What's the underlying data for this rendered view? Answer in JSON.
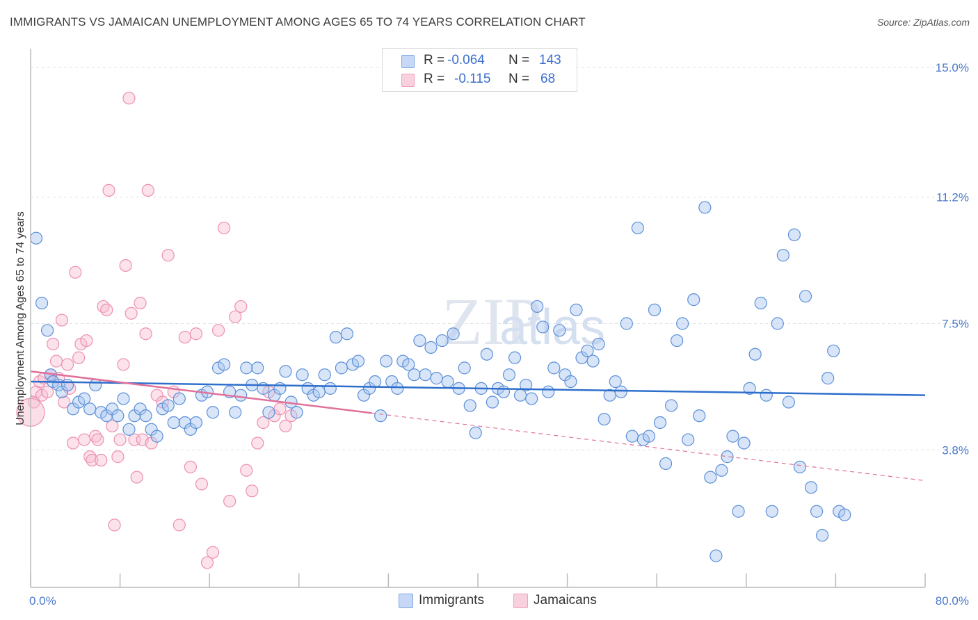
{
  "header": {
    "title": "IMMIGRANTS VS JAMAICAN UNEMPLOYMENT AMONG AGES 65 TO 74 YEARS CORRELATION CHART",
    "source": "Source: ZipAtlas.com"
  },
  "watermark": "ZIPatlas",
  "legend": {
    "rows": [
      {
        "r_label": "R =",
        "r_value": "-0.064",
        "n_label": "N =",
        "n_value": "143",
        "color": "#7ea7e6"
      },
      {
        "r_label": "R =",
        "r_value": "-0.115",
        "n_label": "N =",
        "n_value": "68",
        "color": "#f0a0bf"
      }
    ]
  },
  "bottom_legend": {
    "items": [
      {
        "label": "Immigrants",
        "color": "#7ea7e6"
      },
      {
        "label": "Jamaicans",
        "color": "#f0a0bf"
      }
    ]
  },
  "chart_data": {
    "type": "scatter",
    "ylabel": "Unemployment Among Ages 65 to 74 years",
    "xlim": [
      0,
      80
    ],
    "ylim": [
      0,
      15
    ],
    "x_tick_labels": [
      "0.0%",
      "80.0%"
    ],
    "y_ticks": [
      {
        "value": 3.8,
        "label": "3.8%"
      },
      {
        "value": 7.5,
        "label": "7.5%"
      },
      {
        "value": 11.2,
        "label": "11.2%"
      },
      {
        "value": 15.0,
        "label": "15.0%"
      }
    ],
    "grid": "horizontal dashed",
    "colors": {
      "immigrants": "#5b8fd8",
      "jamaicans": "#ee8fb2",
      "immigrants_line": "#2f6fcc",
      "jamaicans_line": "#e0719a"
    },
    "series": [
      {
        "name": "Immigrants",
        "trend": {
          "x": [
            0,
            80
          ],
          "y": [
            5.8,
            5.4
          ]
        },
        "points": [
          [
            0.5,
            10.0
          ],
          [
            1.0,
            8.1
          ],
          [
            1.5,
            7.3
          ],
          [
            1.8,
            6.0
          ],
          [
            2.0,
            5.8
          ],
          [
            2.5,
            5.7
          ],
          [
            2.8,
            5.5
          ],
          [
            3.3,
            5.7
          ],
          [
            3.8,
            5.0
          ],
          [
            4.3,
            5.2
          ],
          [
            4.8,
            5.3
          ],
          [
            5.3,
            5.0
          ],
          [
            5.8,
            5.7
          ],
          [
            6.3,
            4.9
          ],
          [
            6.8,
            4.8
          ],
          [
            7.3,
            5.0
          ],
          [
            7.8,
            4.8
          ],
          [
            8.3,
            5.3
          ],
          [
            8.8,
            4.4
          ],
          [
            9.3,
            4.8
          ],
          [
            9.8,
            5.0
          ],
          [
            10.3,
            4.8
          ],
          [
            10.8,
            4.4
          ],
          [
            11.3,
            4.2
          ],
          [
            11.8,
            5.0
          ],
          [
            12.3,
            5.1
          ],
          [
            12.8,
            4.6
          ],
          [
            13.3,
            5.3
          ],
          [
            13.8,
            4.6
          ],
          [
            14.3,
            4.4
          ],
          [
            14.8,
            4.6
          ],
          [
            15.3,
            5.4
          ],
          [
            15.8,
            5.5
          ],
          [
            16.3,
            4.9
          ],
          [
            16.8,
            6.2
          ],
          [
            17.3,
            6.3
          ],
          [
            17.8,
            5.5
          ],
          [
            18.3,
            4.9
          ],
          [
            18.8,
            5.4
          ],
          [
            19.3,
            6.2
          ],
          [
            19.8,
            5.7
          ],
          [
            20.3,
            6.2
          ],
          [
            20.8,
            5.6
          ],
          [
            21.3,
            4.9
          ],
          [
            21.8,
            5.4
          ],
          [
            22.3,
            5.6
          ],
          [
            22.8,
            6.1
          ],
          [
            23.3,
            5.2
          ],
          [
            23.8,
            4.9
          ],
          [
            24.3,
            6.0
          ],
          [
            24.8,
            5.6
          ],
          [
            25.3,
            5.4
          ],
          [
            25.8,
            5.5
          ],
          [
            26.3,
            6.0
          ],
          [
            26.8,
            5.6
          ],
          [
            27.3,
            7.1
          ],
          [
            27.8,
            6.2
          ],
          [
            28.3,
            7.2
          ],
          [
            28.8,
            6.3
          ],
          [
            29.3,
            6.4
          ],
          [
            29.8,
            5.4
          ],
          [
            30.3,
            5.6
          ],
          [
            30.8,
            5.8
          ],
          [
            31.3,
            4.8
          ],
          [
            31.8,
            6.4
          ],
          [
            32.3,
            5.8
          ],
          [
            32.8,
            5.6
          ],
          [
            33.3,
            6.4
          ],
          [
            33.8,
            6.3
          ],
          [
            34.3,
            6.0
          ],
          [
            34.8,
            7.0
          ],
          [
            35.3,
            6.0
          ],
          [
            35.8,
            6.8
          ],
          [
            36.3,
            5.9
          ],
          [
            36.8,
            7.0
          ],
          [
            37.3,
            5.8
          ],
          [
            37.8,
            7.2
          ],
          [
            38.3,
            5.6
          ],
          [
            38.8,
            6.2
          ],
          [
            39.3,
            5.1
          ],
          [
            39.8,
            4.3
          ],
          [
            40.3,
            5.6
          ],
          [
            40.8,
            6.6
          ],
          [
            41.3,
            5.2
          ],
          [
            41.8,
            5.6
          ],
          [
            42.3,
            5.5
          ],
          [
            42.8,
            6.0
          ],
          [
            43.3,
            6.5
          ],
          [
            43.8,
            5.4
          ],
          [
            44.3,
            5.7
          ],
          [
            44.8,
            5.3
          ],
          [
            45.3,
            8.0
          ],
          [
            45.8,
            7.4
          ],
          [
            46.3,
            5.5
          ],
          [
            46.8,
            6.2
          ],
          [
            47.3,
            7.3
          ],
          [
            47.8,
            6.0
          ],
          [
            48.3,
            5.8
          ],
          [
            48.8,
            7.9
          ],
          [
            49.3,
            6.5
          ],
          [
            49.8,
            6.7
          ],
          [
            50.3,
            6.4
          ],
          [
            50.8,
            6.9
          ],
          [
            51.3,
            4.7
          ],
          [
            51.8,
            5.4
          ],
          [
            52.3,
            5.8
          ],
          [
            52.8,
            5.5
          ],
          [
            53.3,
            7.5
          ],
          [
            53.8,
            4.2
          ],
          [
            54.3,
            10.3
          ],
          [
            54.8,
            4.1
          ],
          [
            55.3,
            4.2
          ],
          [
            55.8,
            7.9
          ],
          [
            56.3,
            4.6
          ],
          [
            56.8,
            3.4
          ],
          [
            57.3,
            5.1
          ],
          [
            57.8,
            7.0
          ],
          [
            58.3,
            7.5
          ],
          [
            58.8,
            4.1
          ],
          [
            59.3,
            8.2
          ],
          [
            59.8,
            4.8
          ],
          [
            60.3,
            10.9
          ],
          [
            60.8,
            3.0
          ],
          [
            61.3,
            0.7
          ],
          [
            61.8,
            3.2
          ],
          [
            62.3,
            3.6
          ],
          [
            62.8,
            4.2
          ],
          [
            63.3,
            2.0
          ],
          [
            63.8,
            4.0
          ],
          [
            64.3,
            5.6
          ],
          [
            64.8,
            6.6
          ],
          [
            65.3,
            8.1
          ],
          [
            65.8,
            5.4
          ],
          [
            66.3,
            2.0
          ],
          [
            66.8,
            7.5
          ],
          [
            67.3,
            9.5
          ],
          [
            67.8,
            5.2
          ],
          [
            68.3,
            10.1
          ],
          [
            68.8,
            3.3
          ],
          [
            69.3,
            8.3
          ],
          [
            69.8,
            2.7
          ],
          [
            70.3,
            2.0
          ],
          [
            70.8,
            1.3
          ],
          [
            71.3,
            5.9
          ],
          [
            71.8,
            6.7
          ],
          [
            72.3,
            2.0
          ],
          [
            72.8,
            1.9
          ]
        ]
      },
      {
        "name": "Jamaicans",
        "trend": {
          "x": [
            0,
            80
          ],
          "y": [
            6.1,
            2.9
          ]
        },
        "points": [
          [
            0.3,
            5.2
          ],
          [
            0.5,
            5.5
          ],
          [
            0.8,
            5.8
          ],
          [
            1.0,
            5.4
          ],
          [
            1.2,
            5.9
          ],
          [
            1.5,
            5.5
          ],
          [
            1.8,
            6.0
          ],
          [
            2.0,
            6.9
          ],
          [
            2.3,
            6.4
          ],
          [
            2.5,
            5.9
          ],
          [
            2.8,
            7.6
          ],
          [
            3.0,
            5.2
          ],
          [
            3.3,
            6.3
          ],
          [
            3.5,
            5.6
          ],
          [
            3.8,
            4.0
          ],
          [
            4.0,
            9.0
          ],
          [
            4.3,
            6.5
          ],
          [
            4.5,
            6.9
          ],
          [
            4.8,
            4.1
          ],
          [
            5.0,
            7.0
          ],
          [
            5.3,
            3.6
          ],
          [
            5.5,
            3.5
          ],
          [
            5.8,
            4.2
          ],
          [
            6.0,
            4.1
          ],
          [
            6.3,
            3.5
          ],
          [
            6.5,
            8.0
          ],
          [
            6.8,
            7.9
          ],
          [
            7.0,
            11.4
          ],
          [
            7.3,
            4.5
          ],
          [
            7.5,
            1.6
          ],
          [
            7.8,
            3.6
          ],
          [
            8.0,
            4.1
          ],
          [
            8.3,
            6.3
          ],
          [
            8.5,
            9.2
          ],
          [
            8.8,
            14.1
          ],
          [
            9.0,
            7.8
          ],
          [
            9.3,
            4.1
          ],
          [
            9.5,
            3.0
          ],
          [
            9.8,
            8.1
          ],
          [
            10.0,
            4.1
          ],
          [
            10.3,
            7.2
          ],
          [
            10.5,
            11.4
          ],
          [
            10.8,
            4.0
          ],
          [
            11.3,
            5.4
          ],
          [
            11.8,
            5.2
          ],
          [
            12.3,
            9.5
          ],
          [
            12.8,
            5.5
          ],
          [
            13.3,
            1.6
          ],
          [
            13.8,
            7.1
          ],
          [
            14.3,
            3.3
          ],
          [
            14.8,
            7.2
          ],
          [
            15.3,
            2.8
          ],
          [
            15.8,
            0.5
          ],
          [
            16.3,
            0.8
          ],
          [
            16.8,
            7.3
          ],
          [
            17.3,
            10.3
          ],
          [
            17.8,
            2.3
          ],
          [
            18.3,
            7.7
          ],
          [
            18.8,
            8.0
          ],
          [
            19.3,
            3.2
          ],
          [
            19.8,
            2.6
          ],
          [
            20.3,
            4.0
          ],
          [
            20.8,
            4.6
          ],
          [
            21.3,
            5.5
          ],
          [
            21.8,
            4.8
          ],
          [
            22.3,
            5.0
          ],
          [
            22.8,
            4.5
          ],
          [
            23.3,
            4.8
          ]
        ]
      }
    ]
  }
}
